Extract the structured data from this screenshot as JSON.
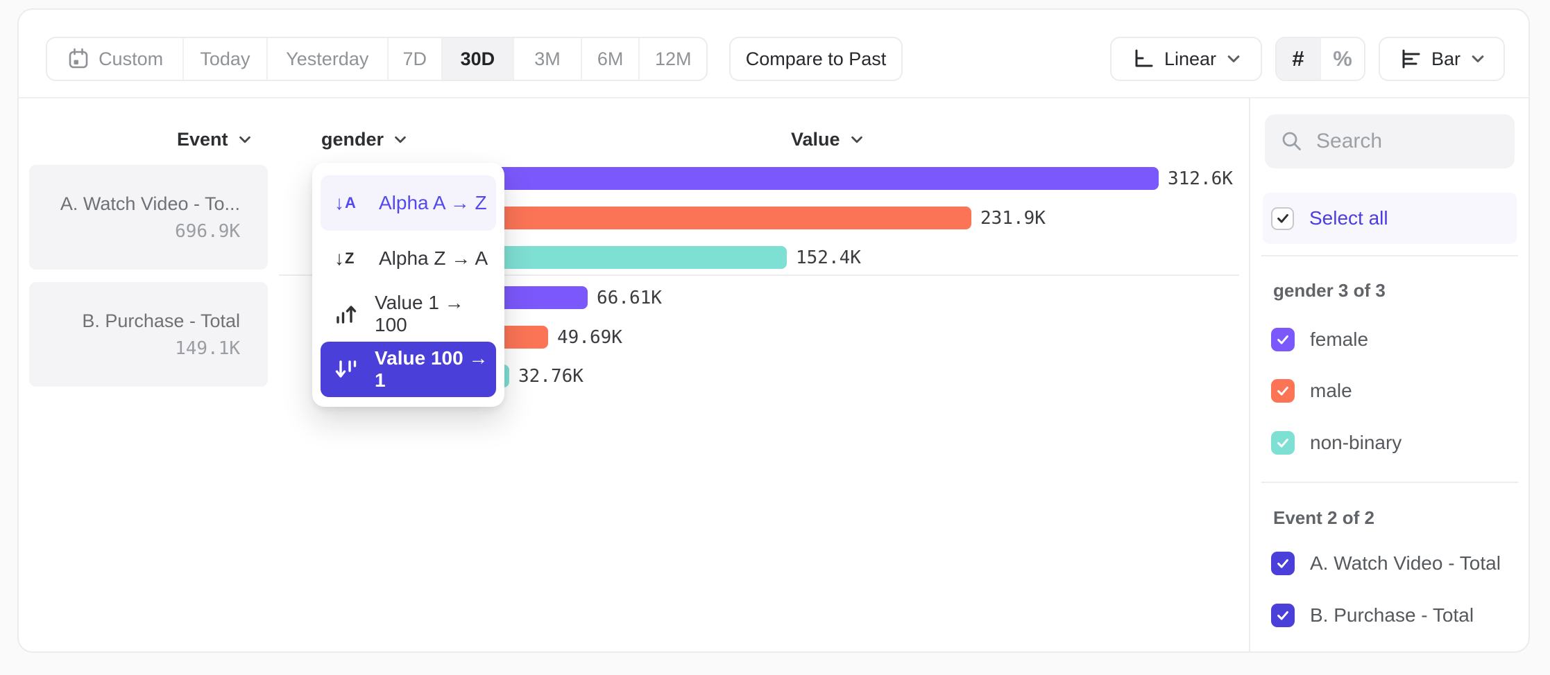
{
  "toolbar": {
    "date_ranges": [
      "Custom",
      "Today",
      "Yesterday",
      "7D",
      "30D",
      "3M",
      "6M",
      "12M"
    ],
    "active_range": "30D",
    "compare_label": "Compare to Past",
    "scale_label": "Linear",
    "counter_label": "#",
    "percent_label": "%",
    "chart_type_label": "Bar"
  },
  "columns": {
    "event": "Event",
    "breakdown": "gender",
    "value": "Value"
  },
  "events": [
    {
      "name": "A. Watch Video - To...",
      "value": "696.9K"
    },
    {
      "name": "B. Purchase - Total",
      "value": "149.1K"
    }
  ],
  "sort_menu": {
    "items": [
      {
        "label": "Alpha A → Z"
      },
      {
        "label": "Alpha Z → A"
      },
      {
        "label": "Value 1 → 100"
      },
      {
        "label": "Value 100 → 1"
      }
    ],
    "selected": "Value 100 → 1"
  },
  "chart_data": {
    "type": "bar",
    "orientation": "horizontal",
    "sort": "Value 100 → 1",
    "max_value": 312600,
    "legend": {
      "female": "#7b58fb",
      "male": "#fb7456",
      "non-binary": "#7ee0d2"
    },
    "groups": [
      {
        "event": "A. Watch Video - Total",
        "total_display": "696.9K",
        "bars": [
          {
            "gender": "female",
            "value": 312600,
            "display": "312.6K",
            "color": "#7b58fb"
          },
          {
            "gender": "male",
            "value": 231900,
            "display": "231.9K",
            "color": "#fb7456"
          },
          {
            "gender": "non-binary",
            "value": 152400,
            "display": "152.4K",
            "color": "#7ee0d2"
          }
        ]
      },
      {
        "event": "B. Purchase - Total",
        "total_display": "149.1K",
        "bars": [
          {
            "gender": "female",
            "value": 66610,
            "display": "66.61K",
            "color": "#7b58fb"
          },
          {
            "gender": "male",
            "value": 49690,
            "display": "49.69K",
            "color": "#fb7456"
          },
          {
            "gender": "non-binary",
            "value": 32760,
            "display": "32.76K",
            "color": "#7ee0d2"
          }
        ]
      }
    ]
  },
  "sidebar": {
    "search_placeholder": "Search",
    "select_all_label": "Select all",
    "sections": [
      {
        "title": "gender 3 of 3",
        "items": [
          {
            "label": "female",
            "color": "#7b58fb"
          },
          {
            "label": "male",
            "color": "#fb7456"
          },
          {
            "label": "non-binary",
            "color": "#7ee0d2"
          }
        ]
      },
      {
        "title": "Event 2 of 2",
        "items": [
          {
            "label": "A. Watch Video - Total",
            "color": "#4b3fd9"
          },
          {
            "label": "B. Purchase - Total",
            "color": "#4b3fd9"
          }
        ]
      }
    ]
  }
}
